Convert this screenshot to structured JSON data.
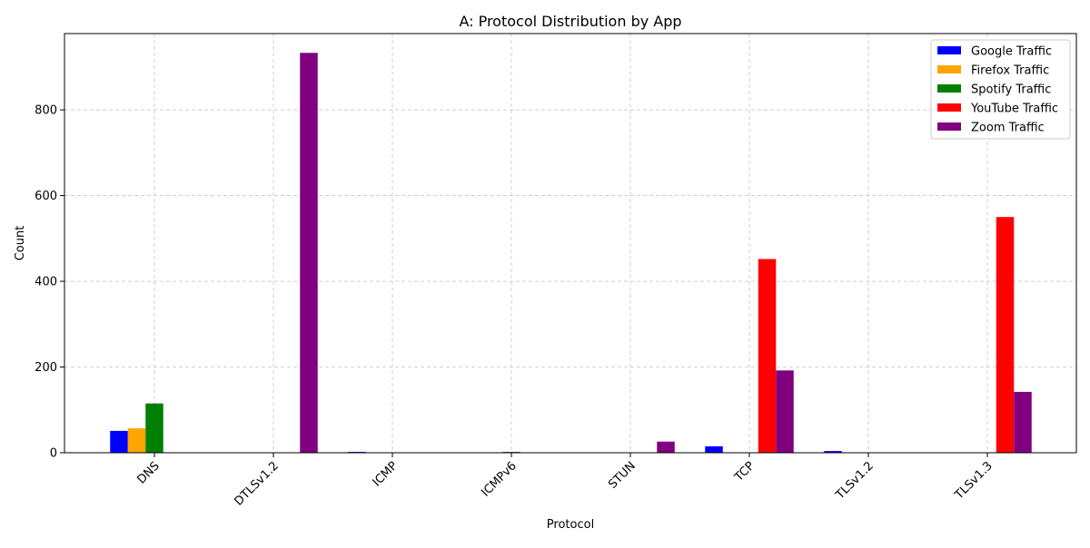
{
  "chart_data": {
    "type": "bar",
    "title": "A: Protocol Distribution by App",
    "xlabel": "Protocol",
    "ylabel": "Count",
    "ylim": [
      0,
      978
    ],
    "yticks": [
      0,
      200,
      400,
      600,
      800
    ],
    "grid": true,
    "legend_position": "top-right",
    "categories": [
      "DNS",
      "DTLSv1.2",
      "ICMP",
      "ICMPv6",
      "STUN",
      "TCP",
      "TLSv1.2",
      "TLSv1.3"
    ],
    "series": [
      {
        "name": "Google Traffic",
        "color": "#0000ff",
        "values": [
          51,
          0,
          2,
          0,
          0,
          15,
          4,
          0
        ]
      },
      {
        "name": "Firefox Traffic",
        "color": "#ffa500",
        "values": [
          57,
          0,
          0,
          0,
          0,
          0,
          0,
          0
        ]
      },
      {
        "name": "Spotify Traffic",
        "color": "#008000",
        "values": [
          115,
          0,
          0,
          2,
          0,
          0,
          0,
          0
        ]
      },
      {
        "name": "YouTube Traffic",
        "color": "#ff0000",
        "values": [
          0,
          0,
          0,
          0,
          0,
          452,
          0,
          550
        ]
      },
      {
        "name": "Zoom Traffic",
        "color": "#800080",
        "values": [
          0,
          933,
          0,
          0,
          26,
          192,
          0,
          142
        ]
      }
    ]
  }
}
